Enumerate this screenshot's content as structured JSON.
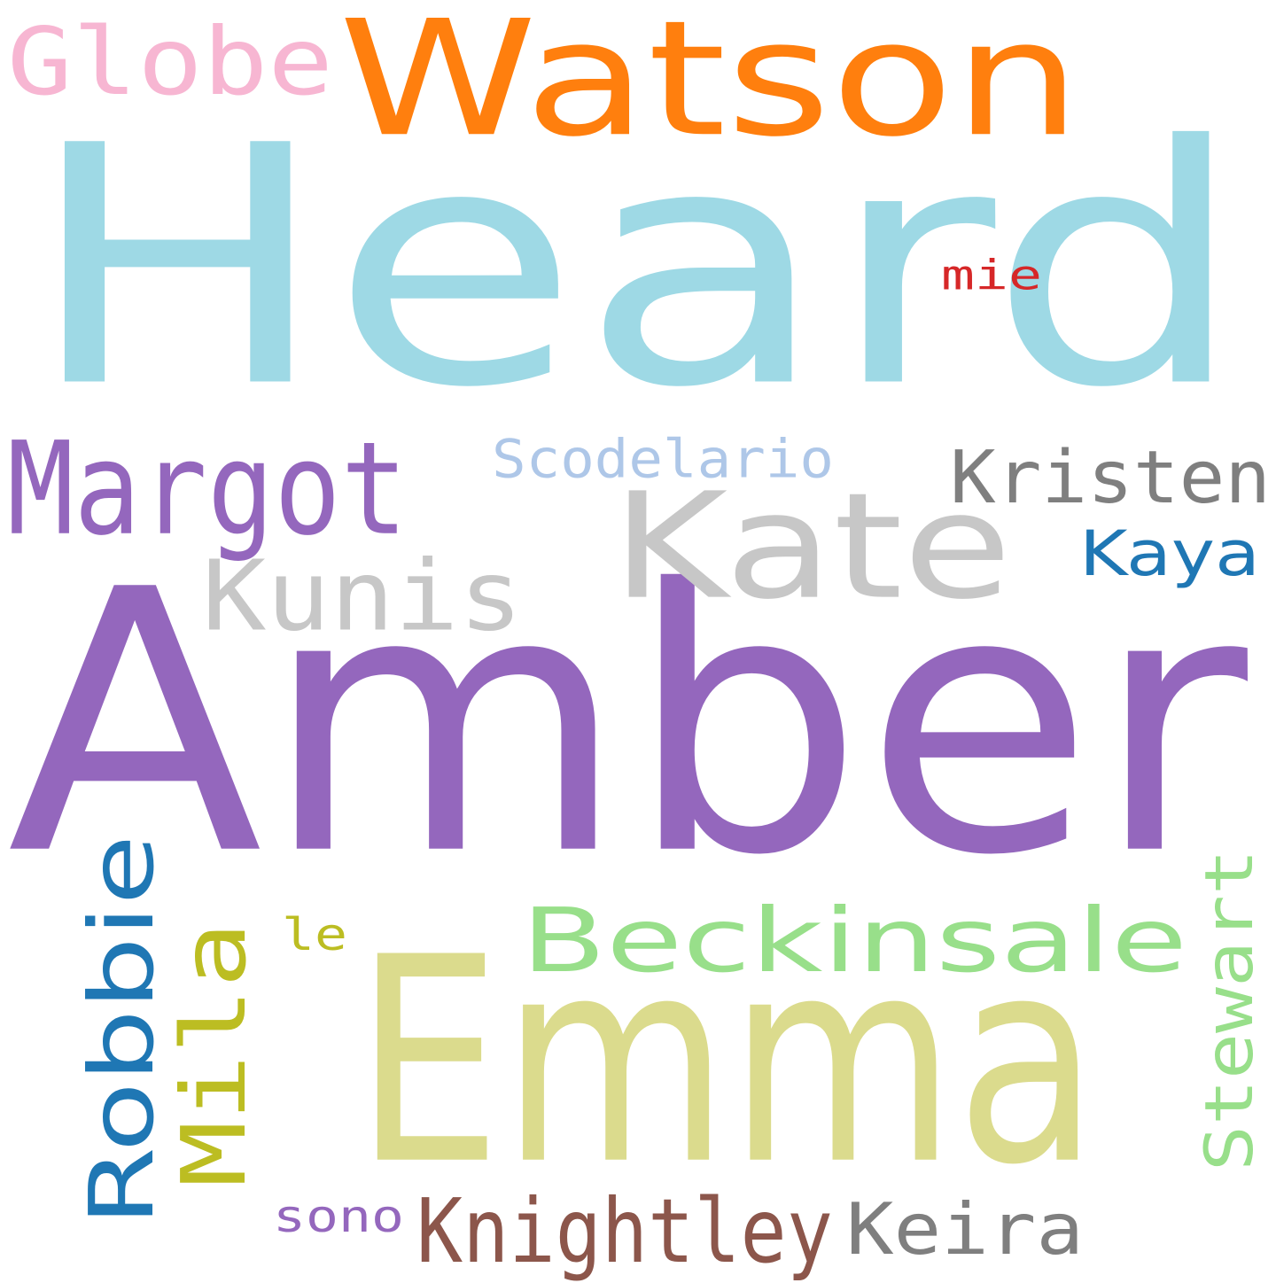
{
  "words": [
    {
      "id": "heard",
      "text": "Heard",
      "color": "#9ed9e5"
    },
    {
      "id": "amber",
      "text": "Amber",
      "color": "#9467bd"
    },
    {
      "id": "emma",
      "text": "Emma",
      "color": "#dbdb8d"
    },
    {
      "id": "watson",
      "text": "Watson",
      "color": "#ff7f0e"
    },
    {
      "id": "kate",
      "text": "Kate",
      "color": "#c7c7c7"
    },
    {
      "id": "beckinsale",
      "text": "Beckinsale",
      "color": "#98df8a"
    },
    {
      "id": "margot",
      "text": "Margot",
      "color": "#9467bd"
    },
    {
      "id": "kunis",
      "text": "Kunis",
      "color": "#c7c7c7"
    },
    {
      "id": "robbie",
      "text": "Robbie",
      "color": "#1f77b4"
    },
    {
      "id": "mila",
      "text": "Mila",
      "color": "#bcbd22"
    },
    {
      "id": "knightley",
      "text": "Knightley",
      "color": "#8c564b"
    },
    {
      "id": "globe",
      "text": "Globe",
      "color": "#f7b6d2"
    },
    {
      "id": "kristen",
      "text": "Kristen",
      "color": "#7f7f7f"
    },
    {
      "id": "stewart",
      "text": "Stewart",
      "color": "#98df8a"
    },
    {
      "id": "keira",
      "text": "Keira",
      "color": "#7f7f7f"
    },
    {
      "id": "kaya",
      "text": "Kaya",
      "color": "#1f77b4"
    },
    {
      "id": "scodelario",
      "text": "Scodelario",
      "color": "#aec7e8"
    },
    {
      "id": "sono",
      "text": "sono",
      "color": "#9467bd"
    },
    {
      "id": "mie",
      "text": "mie",
      "color": "#d62728"
    },
    {
      "id": "le",
      "text": "le",
      "color": "#bcbd22"
    }
  ]
}
